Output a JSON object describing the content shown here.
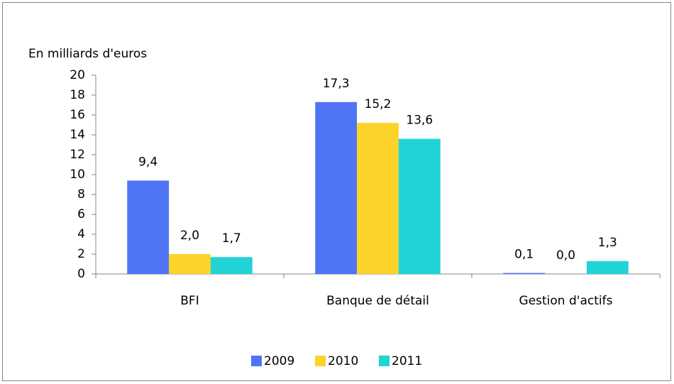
{
  "chart_data": {
    "type": "bar",
    "y_label": "En milliards d'euros",
    "categories": [
      "BFI",
      "Banque de détail",
      "Gestion d'actifs"
    ],
    "series": [
      {
        "name": "2009",
        "color": "#4f74f4",
        "values": [
          9.4,
          17.3,
          0.1
        ],
        "value_labels": [
          "9,4",
          "17,3",
          "0,1"
        ]
      },
      {
        "name": "2010",
        "color": "#fdd32a",
        "values": [
          2.0,
          15.2,
          0.0
        ],
        "value_labels": [
          "2,0",
          "15,2",
          "0,0"
        ]
      },
      {
        "name": "2011",
        "color": "#22d3d5",
        "values": [
          1.7,
          13.6,
          1.3
        ],
        "value_labels": [
          "1,7",
          "13,6",
          "1,3"
        ]
      }
    ],
    "ylim": [
      0,
      20
    ],
    "yticks": [
      0,
      2,
      4,
      6,
      8,
      10,
      12,
      14,
      16,
      18,
      20
    ],
    "grid": false,
    "legend": "bottom"
  }
}
